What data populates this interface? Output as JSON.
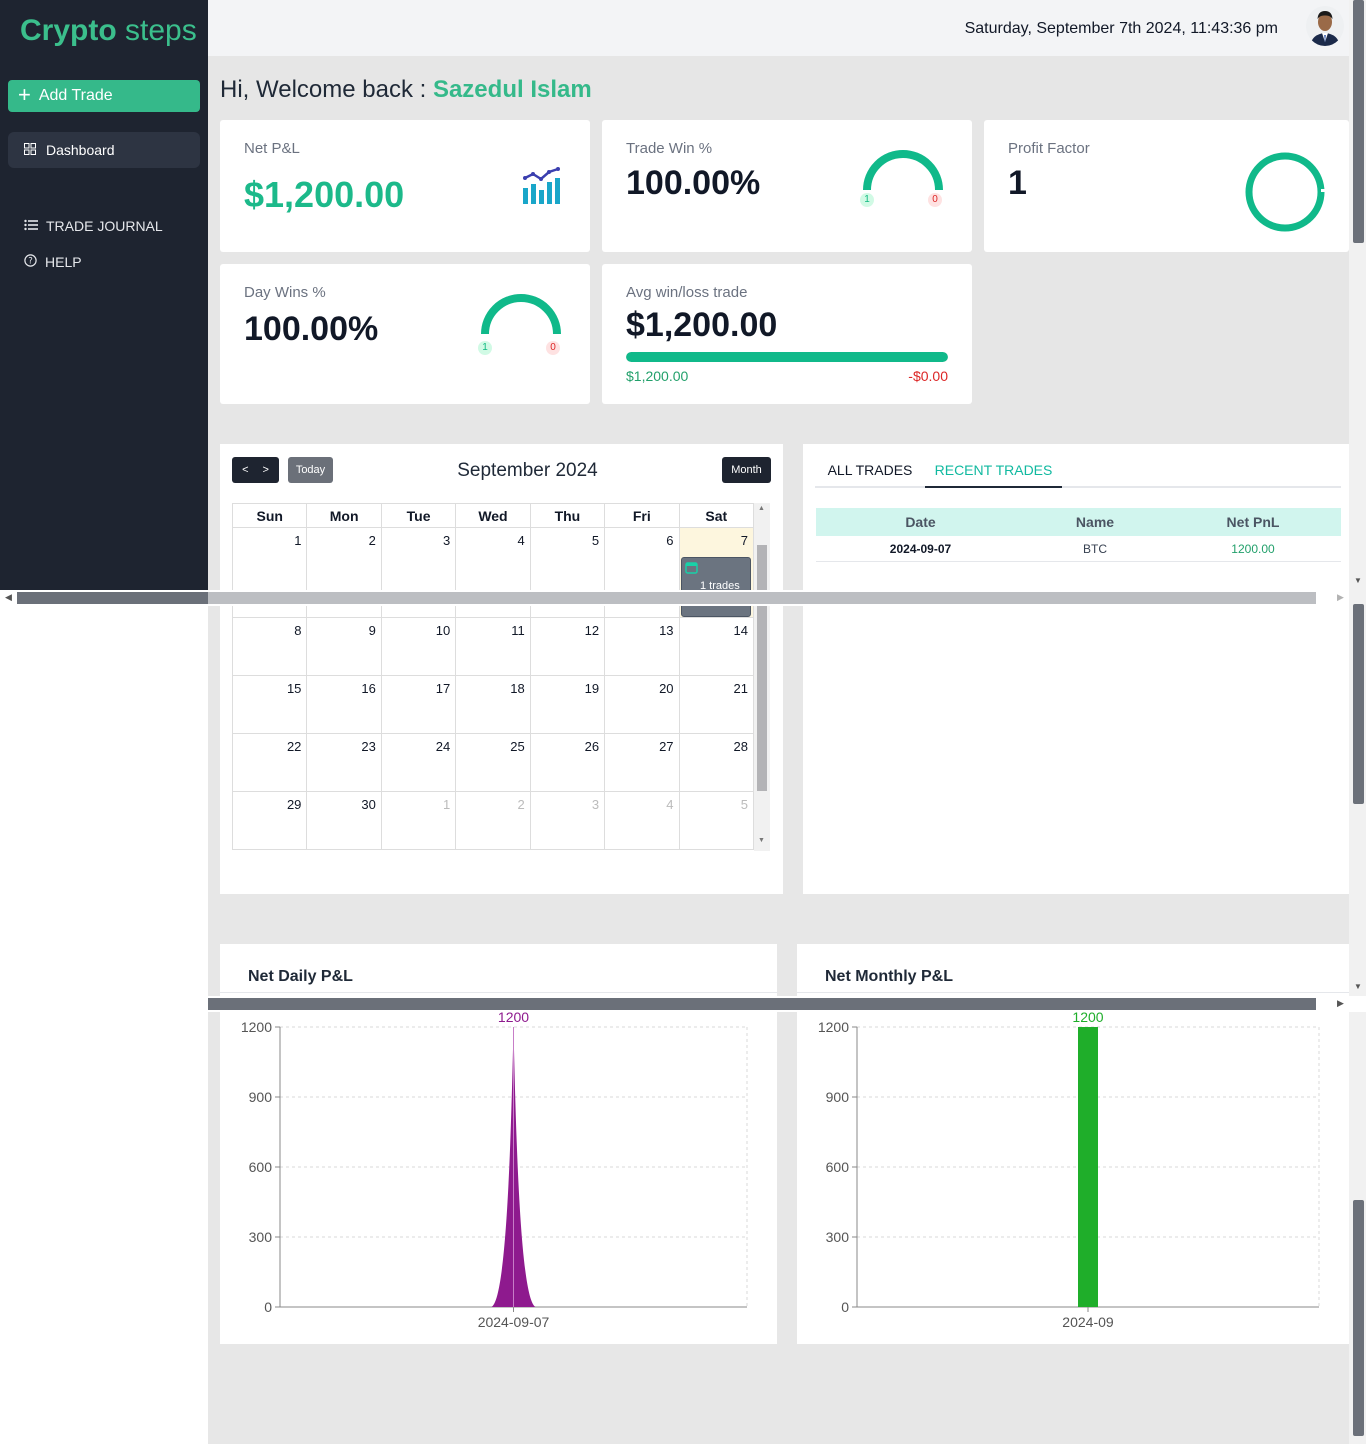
{
  "brand": {
    "bold": "Crypto",
    "light": "steps"
  },
  "sidebar": {
    "add_trade": "Add Trade",
    "dashboard": "Dashboard",
    "trade_journal": "TRADE JOURNAL",
    "help": "HELP"
  },
  "header": {
    "datetime": "Saturday, September 7th 2024, 11:43:36 pm"
  },
  "welcome": {
    "prefix": "Hi, Welcome back : ",
    "name": "Sazedul Islam"
  },
  "cards": {
    "net_pnl": {
      "title": "Net P&L",
      "value": "$1,200.00"
    },
    "trade_win": {
      "title": "Trade Win %",
      "value": "100.00%",
      "wins": "1",
      "losses": "0"
    },
    "profit_factor": {
      "title": "Profit Factor",
      "value": "1"
    },
    "day_wins": {
      "title": "Day Wins %",
      "value": "100.00%",
      "wins": "1",
      "losses": "0"
    },
    "avg_win_loss": {
      "title": "Avg win/loss trade",
      "value": "$1,200.00",
      "avg_win": "$1,200.00",
      "avg_loss": "-$0.00",
      "win_fraction": 1.0
    }
  },
  "calendar": {
    "prev": "<",
    "next": ">",
    "today": "Today",
    "view": "Month",
    "title": "September 2024",
    "weekdays": [
      "Sun",
      "Mon",
      "Tue",
      "Wed",
      "Thu",
      "Fri",
      "Sat"
    ],
    "weeks": [
      [
        "1",
        "2",
        "3",
        "4",
        "5",
        "6",
        "7"
      ],
      [
        "8",
        "9",
        "10",
        "11",
        "12",
        "13",
        "14"
      ],
      [
        "15",
        "16",
        "17",
        "18",
        "19",
        "20",
        "21"
      ],
      [
        "22",
        "23",
        "24",
        "25",
        "26",
        "27",
        "28"
      ],
      [
        "29",
        "30",
        "1",
        "2",
        "3",
        "4",
        "5"
      ]
    ],
    "event": {
      "label": "1 trades"
    }
  },
  "trades": {
    "tabs": [
      "ALL TRADES",
      "RECENT TRADES"
    ],
    "active_tab": 1,
    "columns": [
      "Date",
      "Name",
      "Net PnL"
    ],
    "rows": [
      {
        "date": "2024-09-07",
        "name": "BTC",
        "pnl": "1200.00"
      }
    ]
  },
  "charts": {
    "daily_title": "Net Daily P&L",
    "monthly_title": "Net Monthly P&L"
  },
  "colors": {
    "accent": "#35b98a",
    "sidebar": "#1e2430",
    "daily": "#8e1a8e",
    "monthly": "#1fae2a",
    "loss": "#dc2626"
  },
  "chart_data": [
    {
      "type": "area",
      "title": "Net Daily P&L",
      "x": [
        "2024-09-07"
      ],
      "values": [
        1200
      ],
      "data_labels": [
        "1200"
      ],
      "yticks": [
        "0",
        "300",
        "600",
        "900",
        "1200"
      ],
      "ylim": [
        0,
        1200
      ],
      "grid": true
    },
    {
      "type": "bar",
      "title": "Net Monthly P&L",
      "categories": [
        "2024-09"
      ],
      "values": [
        1200
      ],
      "data_labels": [
        "1200"
      ],
      "yticks": [
        "0",
        "300",
        "600",
        "900",
        "1200"
      ],
      "ylim": [
        0,
        1200
      ],
      "grid": true
    }
  ]
}
